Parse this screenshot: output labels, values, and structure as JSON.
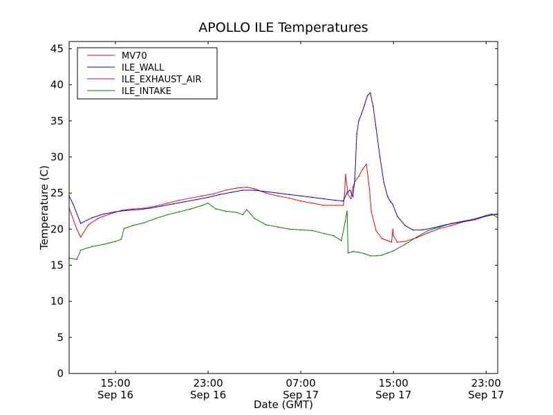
{
  "chart_data": {
    "type": "line",
    "title": "APOLLO ILE Temperatures",
    "xlabel": "Date (GMT)",
    "ylabel": "Temperature (C)",
    "x_unit": "date-time (GMT)",
    "x_range": [
      "Sep 16 11:00",
      "Sep 18 00:00"
    ],
    "ylim": [
      0,
      46
    ],
    "yticks": [
      0,
      5,
      10,
      15,
      20,
      25,
      30,
      35,
      40,
      45
    ],
    "xticks": [
      {
        "time": "Sep 16 15:00",
        "label_time": "15:00",
        "label_date": "Sep 16"
      },
      {
        "time": "Sep 16 23:00",
        "label_time": "23:00",
        "label_date": "Sep 16"
      },
      {
        "time": "Sep 17 07:00",
        "label_time": "07:00",
        "label_date": "Sep 17"
      },
      {
        "time": "Sep 17 15:00",
        "label_time": "15:00",
        "label_date": "Sep 17"
      },
      {
        "time": "Sep 17 23:00",
        "label_time": "23:00",
        "label_date": "Sep 17"
      }
    ],
    "grid": false,
    "legend_position": "top-left",
    "series": [
      {
        "name": "MV70",
        "color": "#ff0000",
        "x": [
          "Sep 16 11:00",
          "Sep 16 11:10",
          "Sep 16 11:40",
          "Sep 16 12:00",
          "Sep 16 12:40",
          "Sep 16 13:30",
          "Sep 16 14:30",
          "Sep 16 15:30",
          "Sep 16 16:30",
          "Sep 16 17:30",
          "Sep 16 18:30",
          "Sep 16 19:30",
          "Sep 16 20:30",
          "Sep 16 21:30",
          "Sep 16 22:30",
          "Sep 16 23:30",
          "Sep 17 00:30",
          "Sep 17 01:30",
          "Sep 17 02:20",
          "Sep 17 03:00",
          "Sep 17 04:00",
          "Sep 17 05:00",
          "Sep 17 06:00",
          "Sep 17 07:00",
          "Sep 17 08:00",
          "Sep 17 09:00",
          "Sep 17 10:00",
          "Sep 17 10:40",
          "Sep 17 10:47",
          "Sep 17 10:52",
          "Sep 17 11:05",
          "Sep 17 11:20",
          "Sep 17 11:30",
          "Sep 17 11:40",
          "Sep 17 12:00",
          "Sep 17 12:20",
          "Sep 17 12:40",
          "Sep 17 12:56",
          "Sep 17 13:05",
          "Sep 17 13:30",
          "Sep 17 14:00",
          "Sep 17 14:30",
          "Sep 17 14:50",
          "Sep 17 14:57",
          "Sep 17 15:00",
          "Sep 17 15:20",
          "Sep 17 16:00",
          "Sep 17 17:00",
          "Sep 17 18:00",
          "Sep 17 19:00",
          "Sep 17 20:00",
          "Sep 17 21:00",
          "Sep 17 22:00",
          "Sep 17 23:00",
          "Sep 17 23:40",
          "Sep 18 00:00"
        ],
        "values": [
          22.9,
          22.2,
          20.0,
          18.9,
          20.6,
          21.5,
          22.1,
          22.6,
          22.8,
          22.9,
          23.2,
          23.6,
          24.0,
          24.3,
          24.6,
          24.9,
          25.4,
          25.7,
          25.8,
          25.6,
          25.0,
          24.6,
          24.3,
          23.9,
          23.6,
          23.3,
          23.3,
          23.3,
          25.0,
          27.6,
          24.8,
          24.2,
          25.8,
          26.6,
          27.3,
          28.3,
          29.0,
          25.5,
          22.5,
          19.8,
          18.7,
          18.4,
          18.2,
          20.0,
          19.1,
          18.2,
          18.3,
          18.8,
          19.5,
          20.1,
          20.5,
          21.0,
          21.3,
          21.8,
          22.0,
          22.0
        ]
      },
      {
        "name": "ILE_WALL",
        "color": "#0000ff",
        "x": [
          "Sep 16 11:00",
          "Sep 16 11:20",
          "Sep 16 12:00",
          "Sep 16 13:00",
          "Sep 16 14:00",
          "Sep 16 15:00",
          "Sep 16 16:00",
          "Sep 16 17:00",
          "Sep 16 18:00",
          "Sep 16 19:00",
          "Sep 16 20:00",
          "Sep 16 21:00",
          "Sep 16 22:00",
          "Sep 16 23:00",
          "Sep 17 00:00",
          "Sep 17 01:00",
          "Sep 17 02:00",
          "Sep 17 03:00",
          "Sep 17 04:00",
          "Sep 17 05:00",
          "Sep 17 06:00",
          "Sep 17 07:00",
          "Sep 17 08:00",
          "Sep 17 09:00",
          "Sep 17 10:00",
          "Sep 17 10:40",
          "Sep 17 11:00",
          "Sep 17 11:15",
          "Sep 17 11:30",
          "Sep 17 11:40",
          "Sep 17 11:50",
          "Sep 17 12:00",
          "Sep 17 12:15",
          "Sep 17 12:30",
          "Sep 17 12:45",
          "Sep 17 13:00",
          "Sep 17 13:15",
          "Sep 17 13:30",
          "Sep 17 13:50",
          "Sep 17 14:10",
          "Sep 17 14:30",
          "Sep 17 14:45",
          "Sep 17 14:55",
          "Sep 17 15:20",
          "Sep 17 16:00",
          "Sep 17 16:40",
          "Sep 17 17:30",
          "Sep 17 18:30",
          "Sep 17 19:30",
          "Sep 17 20:30",
          "Sep 17 21:30",
          "Sep 17 22:30",
          "Sep 17 23:30",
          "Sep 18 00:00"
        ],
        "values": [
          24.6,
          23.5,
          20.8,
          21.6,
          22.1,
          22.4,
          22.6,
          22.7,
          22.9,
          23.2,
          23.5,
          23.8,
          24.1,
          24.4,
          24.8,
          25.1,
          25.4,
          25.4,
          25.2,
          25.0,
          24.8,
          24.6,
          24.4,
          24.2,
          24.0,
          23.9,
          25.1,
          25.4,
          24.5,
          27.0,
          33.2,
          35.0,
          36.0,
          37.2,
          38.5,
          38.9,
          37.0,
          34.0,
          30.0,
          26.5,
          24.5,
          23.8,
          23.5,
          21.8,
          20.5,
          19.9,
          19.9,
          20.2,
          20.6,
          20.9,
          21.2,
          21.6,
          22.0,
          22.1
        ]
      },
      {
        "name": "ILE_EXHAUST_AIR",
        "color": "#bf00bf",
        "x": [],
        "values": []
      },
      {
        "name": "ILE_INTAKE",
        "color": "#008000",
        "x": [
          "Sep 16 11:00",
          "Sep 16 11:40",
          "Sep 16 12:00",
          "Sep 16 13:00",
          "Sep 16 14:00",
          "Sep 16 15:00",
          "Sep 16 15:30",
          "Sep 16 15:45",
          "Sep 16 16:30",
          "Sep 16 17:30",
          "Sep 16 18:30",
          "Sep 16 19:30",
          "Sep 16 20:30",
          "Sep 16 21:30",
          "Sep 16 22:30",
          "Sep 16 23:00",
          "Sep 16 23:40",
          "Sep 17 00:30",
          "Sep 17 01:30",
          "Sep 17 02:00",
          "Sep 17 02:20",
          "Sep 17 03:00",
          "Sep 17 04:00",
          "Sep 17 05:00",
          "Sep 17 06:00",
          "Sep 17 07:00",
          "Sep 17 08:00",
          "Sep 17 09:00",
          "Sep 17 09:50",
          "Sep 17 10:30",
          "Sep 17 10:50",
          "Sep 17 11:00",
          "Sep 17 11:05",
          "Sep 17 11:30",
          "Sep 17 12:00",
          "Sep 17 12:30",
          "Sep 17 13:00",
          "Sep 17 13:30",
          "Sep 17 14:00",
          "Sep 17 14:30",
          "Sep 17 15:00",
          "Sep 17 16:00",
          "Sep 17 17:00",
          "Sep 17 18:00",
          "Sep 17 19:00",
          "Sep 17 20:00",
          "Sep 17 21:00",
          "Sep 17 22:00",
          "Sep 17 23:00",
          "Sep 17 23:30",
          "Sep 18 00:00"
        ],
        "values": [
          16.0,
          15.8,
          17.1,
          17.6,
          17.9,
          18.3,
          18.6,
          20.1,
          20.5,
          20.9,
          21.5,
          22.0,
          22.4,
          22.8,
          23.3,
          23.6,
          22.8,
          22.5,
          22.3,
          22.0,
          22.7,
          21.5,
          20.6,
          20.3,
          20.0,
          19.9,
          19.8,
          19.4,
          19.1,
          18.4,
          21.0,
          22.5,
          16.7,
          16.9,
          16.8,
          16.6,
          16.3,
          16.3,
          16.4,
          16.7,
          17.0,
          17.9,
          18.9,
          19.8,
          20.3,
          20.8,
          21.1,
          21.4,
          21.9,
          22.1,
          21.6
        ]
      }
    ]
  }
}
